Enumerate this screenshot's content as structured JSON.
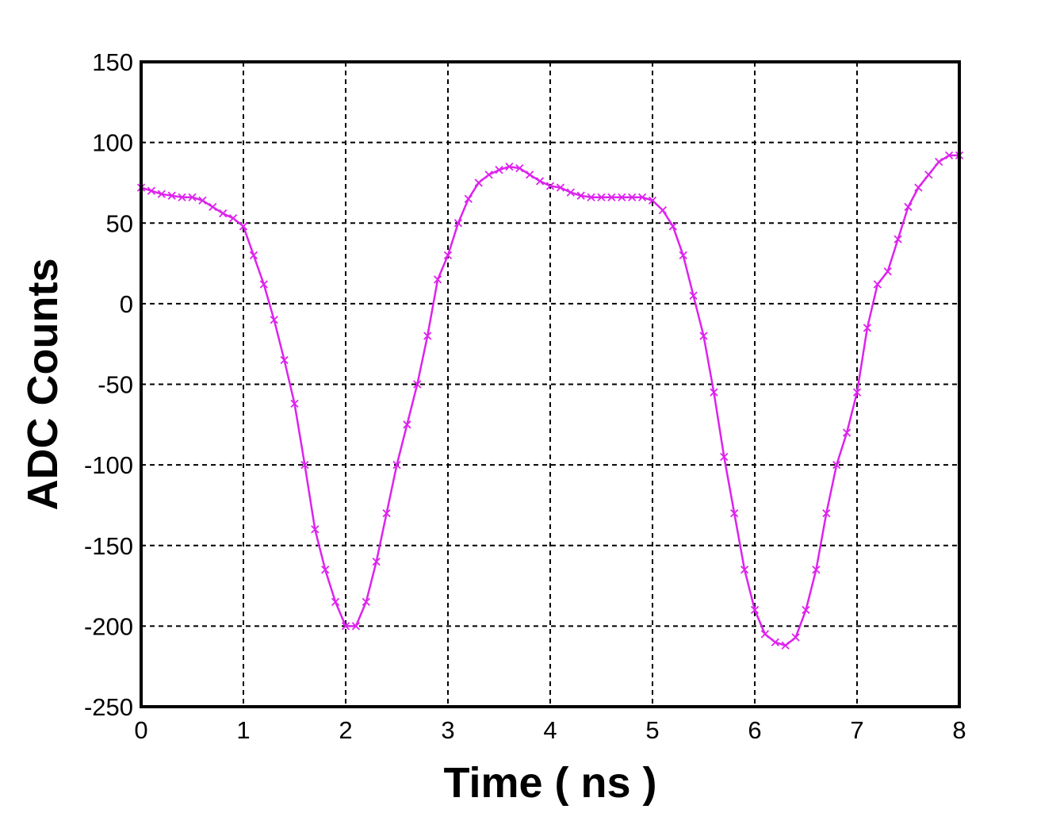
{
  "chart_data": {
    "type": "line",
    "title": "",
    "xlabel": "Time ( ns )",
    "ylabel": "ADC Counts",
    "xlim": [
      0,
      8
    ],
    "ylim": [
      -250,
      150
    ],
    "xticks": [
      0,
      1,
      2,
      3,
      4,
      5,
      6,
      7,
      8
    ],
    "yticks": [
      -250,
      -200,
      -150,
      -100,
      -50,
      0,
      50,
      100,
      150
    ],
    "grid": true,
    "marker": "x",
    "color": "#dd22ee",
    "series": [
      {
        "name": "",
        "x": [
          0.0,
          0.1,
          0.2,
          0.3,
          0.4,
          0.5,
          0.6,
          0.7,
          0.8,
          0.9,
          1.0,
          1.1,
          1.2,
          1.3,
          1.4,
          1.5,
          1.6,
          1.7,
          1.8,
          1.9,
          2.0,
          2.1,
          2.2,
          2.3,
          2.4,
          2.5,
          2.6,
          2.7,
          2.8,
          2.9,
          3.0,
          3.1,
          3.2,
          3.3,
          3.4,
          3.5,
          3.6,
          3.7,
          3.8,
          3.9,
          4.0,
          4.1,
          4.2,
          4.3,
          4.4,
          4.5,
          4.6,
          4.7,
          4.8,
          4.9,
          5.0,
          5.1,
          5.2,
          5.3,
          5.4,
          5.5,
          5.6,
          5.7,
          5.8,
          5.9,
          6.0,
          6.1,
          6.2,
          6.3,
          6.4,
          6.5,
          6.6,
          6.7,
          6.8,
          6.9,
          7.0,
          7.1,
          7.2,
          7.3,
          7.4,
          7.5,
          7.6,
          7.7,
          7.8,
          7.9,
          8.0
        ],
        "y": [
          72,
          70,
          68,
          67,
          66,
          66,
          64,
          60,
          56,
          53,
          48,
          30,
          12,
          -10,
          -35,
          -62,
          -100,
          -140,
          -165,
          -185,
          -200,
          -200,
          -185,
          -160,
          -130,
          -100,
          -75,
          -50,
          -20,
          15,
          30,
          50,
          65,
          75,
          80,
          83,
          85,
          84,
          80,
          76,
          73,
          72,
          69,
          67,
          66,
          66,
          66,
          66,
          66,
          66,
          64,
          58,
          48,
          30,
          5,
          -20,
          -55,
          -95,
          -130,
          -165,
          -190,
          -205,
          -210,
          -212,
          -207,
          -190,
          -165,
          -130,
          -100,
          -80,
          -55,
          -15,
          12,
          20,
          40,
          60,
          72,
          80,
          88,
          92,
          92
        ]
      }
    ]
  }
}
